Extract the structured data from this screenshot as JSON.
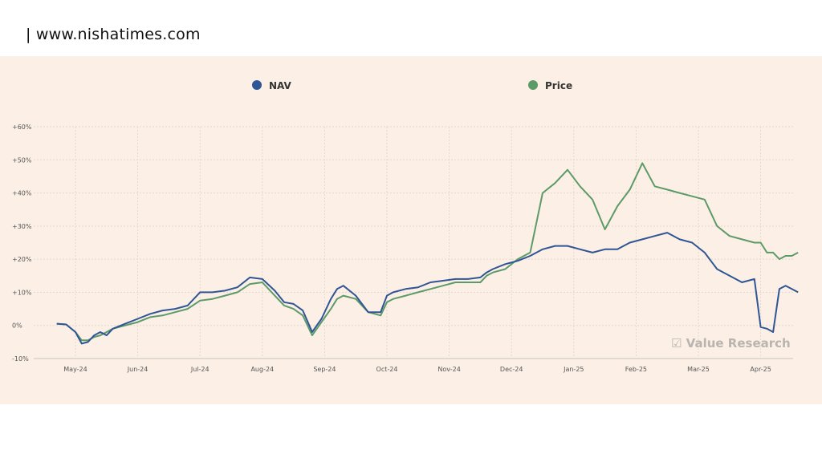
{
  "header": {
    "site": "| www.nishatimes.com"
  },
  "watermark": "☑ Value Research",
  "colors": {
    "panel_bg": "#fcf0e6",
    "nav": "#2f5595",
    "price": "#5c9a68",
    "grid": "#e2d8cf",
    "axis": "#c9c2bb"
  },
  "chart_data": {
    "type": "line",
    "title": "",
    "xlabel": "",
    "ylabel": "",
    "x_tick_labels": [
      "May-24",
      "Jun-24",
      "Jul-24",
      "Aug-24",
      "Sep-24",
      "Oct-24",
      "Nov-24",
      "Dec-24",
      "Jan-25",
      "Feb-25",
      "Mar-25",
      "Apr-25"
    ],
    "y_tick_labels": [
      "+60%",
      "+50%",
      "+40%",
      "+30%",
      "+20%",
      "+10%",
      "0%",
      "-10%"
    ],
    "ylim": [
      -10,
      60
    ],
    "y_ticks": [
      60,
      50,
      40,
      30,
      20,
      10,
      0,
      -10
    ],
    "x_range_months": [
      -0.3,
      11.6
    ],
    "grid": true,
    "legend_position": "top",
    "series": [
      {
        "name": "NAV",
        "color": "#2f5595",
        "x": [
          -0.3,
          -0.15,
          0,
          0.1,
          0.2,
          0.3,
          0.4,
          0.5,
          0.6,
          0.8,
          1.0,
          1.2,
          1.4,
          1.6,
          1.8,
          2.0,
          2.2,
          2.4,
          2.6,
          2.8,
          3.0,
          3.2,
          3.35,
          3.5,
          3.65,
          3.8,
          3.95,
          4.1,
          4.2,
          4.3,
          4.5,
          4.7,
          4.9,
          5.0,
          5.1,
          5.3,
          5.5,
          5.7,
          5.9,
          6.1,
          6.3,
          6.5,
          6.6,
          6.7,
          6.9,
          7.1,
          7.3,
          7.5,
          7.7,
          7.9,
          8.1,
          8.3,
          8.5,
          8.7,
          8.9,
          9.1,
          9.3,
          9.5,
          9.7,
          9.9,
          10.1,
          10.3,
          10.5,
          10.7,
          10.9,
          11.0,
          11.1,
          11.2,
          11.3,
          11.4,
          11.5,
          11.6
        ],
        "values": [
          0.5,
          0.3,
          -2,
          -5.5,
          -5,
          -3,
          -2,
          -3,
          -1,
          0.5,
          2,
          3.5,
          4.5,
          5,
          6,
          10,
          10,
          10.5,
          11.5,
          14.5,
          14,
          10.5,
          7,
          6.5,
          4.5,
          -2,
          2,
          8,
          11,
          12,
          9,
          4,
          4,
          9,
          10,
          11,
          11.5,
          13,
          13.5,
          14,
          14,
          14.5,
          16,
          17,
          18.5,
          19.5,
          21,
          23,
          24,
          24,
          23,
          22,
          23,
          23,
          25,
          26,
          27,
          28,
          26,
          25,
          22,
          17,
          15,
          13,
          14,
          -0.5,
          -1,
          -2,
          11,
          12,
          11,
          10
        ]
      },
      {
        "name": "Price",
        "color": "#5c9a68",
        "x": [
          -0.3,
          -0.15,
          0,
          0.1,
          0.2,
          0.3,
          0.4,
          0.5,
          0.6,
          0.8,
          1.0,
          1.2,
          1.4,
          1.6,
          1.8,
          2.0,
          2.2,
          2.4,
          2.6,
          2.8,
          3.0,
          3.2,
          3.35,
          3.5,
          3.65,
          3.8,
          3.95,
          4.1,
          4.2,
          4.3,
          4.5,
          4.7,
          4.9,
          5.0,
          5.1,
          5.3,
          5.5,
          5.7,
          5.9,
          6.1,
          6.3,
          6.5,
          6.6,
          6.7,
          6.9,
          7.1,
          7.3,
          7.5,
          7.7,
          7.9,
          8.1,
          8.3,
          8.5,
          8.7,
          8.9,
          9.1,
          9.3,
          9.5,
          9.7,
          9.9,
          10.1,
          10.3,
          10.5,
          10.7,
          10.9,
          11.0,
          11.1,
          11.2,
          11.3,
          11.4,
          11.5,
          11.6
        ],
        "values": [
          0.5,
          0.3,
          -2,
          -4.5,
          -4.5,
          -3.5,
          -3,
          -2,
          -1,
          0,
          1,
          2.5,
          3,
          4,
          5,
          7.5,
          8,
          9,
          10,
          12.5,
          13,
          9,
          6,
          5,
          3,
          -3,
          1,
          5,
          8,
          9,
          8,
          4,
          3,
          7,
          8,
          9,
          10,
          11,
          12,
          13,
          13,
          13,
          15,
          16,
          17,
          20,
          22,
          40,
          43,
          47,
          42,
          38,
          29,
          36,
          41,
          49,
          42,
          41,
          40,
          39,
          38,
          30,
          27,
          26,
          25,
          25,
          22,
          22,
          20,
          21,
          21,
          22
        ]
      }
    ]
  }
}
